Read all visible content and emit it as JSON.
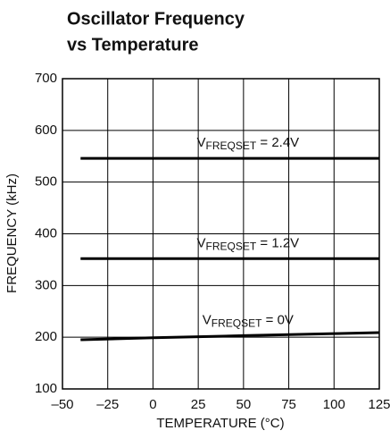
{
  "chart_data": {
    "type": "line",
    "title": [
      "Oscillator Frequency",
      "vs Temperature"
    ],
    "x_label": "TEMPERATURE (°C)",
    "y_label": "FREQUENCY (kHz)",
    "x": [
      -40,
      0,
      25,
      50,
      75,
      100,
      125
    ],
    "series": [
      {
        "label": [
          "V",
          "FREQSET",
          " = 2.4V"
        ],
        "color": "#000000",
        "values": [
          546,
          546,
          546,
          546,
          546,
          546,
          546
        ]
      },
      {
        "label": [
          "V",
          "FREQSET",
          " = 1.2V"
        ],
        "color": "#000000",
        "values": [
          352,
          352,
          352,
          352,
          352,
          352,
          352
        ]
      },
      {
        "label": [
          "V",
          "FREQSET",
          " = 0V"
        ],
        "color": "#000000",
        "values": [
          195,
          199,
          201,
          203,
          205,
          207,
          209
        ]
      }
    ],
    "xlim": [
      -50,
      125
    ],
    "xticks": [
      {
        "value": -50,
        "label": "–50"
      },
      {
        "value": -25,
        "label": "–25"
      },
      0,
      25,
      50,
      75,
      100,
      125
    ],
    "ylim": [
      100,
      700
    ],
    "yticks": [
      100,
      200,
      300,
      400,
      500,
      600,
      700
    ],
    "grid": true
  }
}
